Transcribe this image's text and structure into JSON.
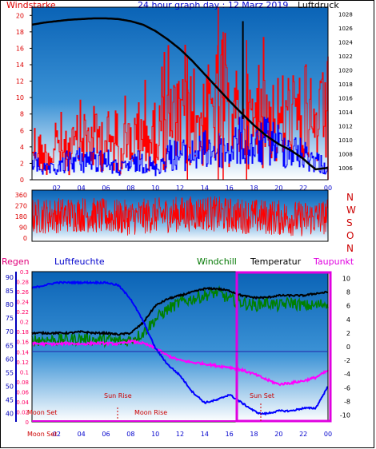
{
  "header": {
    "title": "24 hour graph day : 12 Marz 2019",
    "left_label": "Windstarke",
    "right_label": "Luftdruck"
  },
  "lower_header": {
    "regen": "Regen",
    "luftfeuchte": "Luftfeuchte",
    "windchill": "Windchill",
    "temperatur": "Temperatur",
    "taupunkt": "Taupunkt"
  },
  "colors": {
    "sky_top": "#0a63b6",
    "sky_bottom": "#ffffff",
    "wind_red": "#ff0000",
    "gust_blue": "#0000ff",
    "pressure": "#000000",
    "humidity": "#0000ff",
    "temperature": "#000000",
    "windchill": "#008000",
    "dewpoint": "#ff00ff",
    "rain_axis": "#ff0066",
    "title_blue": "#0000cc",
    "label_red": "#dd0000",
    "axis_blue": "#0000bb"
  },
  "events": {
    "moon_set_bottom": "Moon Set",
    "moon_set_top": "Moon Set",
    "sun_rise": "Sun Rise",
    "moon_rise": "Moon Rise",
    "sun_set": "Sun Set"
  },
  "chart_data": [
    {
      "type": "line",
      "title": "24 hour graph day : 12 Marz 2019",
      "x_ticks": [
        "02",
        "04",
        "06",
        "08",
        "10",
        "12",
        "14",
        "16",
        "18",
        "20",
        "22",
        "00"
      ],
      "y_left_label": "Windstarke",
      "y_left_ticks": [
        "0",
        "2",
        "4",
        "6",
        "8",
        "10",
        "12",
        "14",
        "16",
        "18",
        "20"
      ],
      "y_left_range": [
        0,
        21
      ],
      "y_right_label": "Luftdruck",
      "y_right_ticks": [
        "1006",
        "1008",
        "1010",
        "1012",
        "1014",
        "1016",
        "1018",
        "1020",
        "1022",
        "1024",
        "1026",
        "1028"
      ],
      "y_right_range": [
        1004.3,
        1029
      ],
      "series": [
        {
          "name": "Luftdruck",
          "axis": "right",
          "x_hours": [
            0,
            1,
            2,
            3,
            4,
            5,
            6,
            7,
            8,
            9,
            10,
            11,
            12,
            13,
            14,
            15,
            16,
            17,
            18,
            19,
            20,
            21,
            22,
            22.5,
            23,
            24
          ],
          "values": [
            1026.5,
            1026.8,
            1027.0,
            1027.2,
            1027.3,
            1027.4,
            1027.4,
            1027.3,
            1027.0,
            1026.5,
            1025.6,
            1024.4,
            1023.0,
            1021.3,
            1019.4,
            1017.5,
            1015.6,
            1013.8,
            1012.1,
            1010.6,
            1009.4,
            1008.5,
            1007.3,
            1006.5,
            1005.8,
            1006.0
          ]
        },
        {
          "name": "Windboen",
          "axis": "left",
          "style": "spiky red bars",
          "x_hours": [
            0,
            1,
            2,
            3,
            4,
            5,
            6,
            7,
            8,
            9,
            10,
            11,
            12,
            13,
            14,
            15,
            16,
            17,
            18,
            19,
            20,
            21,
            22,
            23,
            24
          ],
          "values": [
            8,
            5,
            6,
            6,
            9,
            9,
            9,
            6,
            9,
            8,
            9,
            13,
            12,
            14,
            13,
            17,
            13,
            14,
            12,
            14,
            13,
            14,
            12,
            11,
            15
          ]
        },
        {
          "name": "Windstarke",
          "axis": "left",
          "style": "spiky blue bars",
          "x_hours": [
            0,
            1,
            2,
            3,
            4,
            5,
            6,
            7,
            8,
            9,
            10,
            11,
            12,
            13,
            14,
            15,
            16,
            17,
            18,
            19,
            20,
            21,
            22,
            23,
            24
          ],
          "values": [
            4,
            2,
            2,
            4,
            4,
            4,
            4,
            2,
            3,
            4,
            2,
            5,
            5,
            5,
            6,
            6,
            6,
            8,
            6,
            8,
            7,
            6,
            5,
            4,
            2
          ]
        }
      ]
    },
    {
      "type": "line",
      "y_left_ticks": [
        "0",
        "90",
        "180",
        "270",
        "360"
      ],
      "y_left_range": [
        0,
        360
      ],
      "y_right_ticks": [
        "N",
        "W",
        "S",
        "O",
        "N"
      ],
      "series": [
        {
          "name": "Windrichtung",
          "axis": "left",
          "style": "noisy red line",
          "x_hours": [
            0,
            2,
            4,
            6,
            8,
            10,
            12,
            14,
            16,
            18,
            20,
            22,
            24
          ],
          "values": [
            180,
            190,
            200,
            180,
            170,
            190,
            200,
            210,
            190,
            180,
            170,
            160,
            180
          ]
        }
      ]
    },
    {
      "type": "line",
      "x_ticks": [
        "02",
        "04",
        "06",
        "08",
        "10",
        "12",
        "14",
        "16",
        "18",
        "20",
        "22",
        "00"
      ],
      "y_left_humidity_ticks": [
        "40",
        "45",
        "50",
        "55",
        "60",
        "65",
        "70",
        "75",
        "80",
        "85",
        "90"
      ],
      "y_left_rain_ticks": [
        "0",
        "0.02",
        "0.04",
        "0.06",
        "0.08",
        "0.1",
        "0.12",
        "0.14",
        "0.16",
        "0.18",
        "0.2",
        "0.22",
        "0.24",
        "0.26",
        "0.28",
        "0.3"
      ],
      "y_right_temp_ticks": [
        "-10",
        "-8",
        "-6",
        "-4",
        "-2",
        "0",
        "2",
        "4",
        "6",
        "8",
        "10"
      ],
      "y_right_range": [
        -11,
        11
      ],
      "series": [
        {
          "name": "Luftfeuchte",
          "axis": "humidity",
          "x_hours": [
            0,
            1,
            2,
            3,
            4,
            5,
            6,
            7,
            8,
            9,
            10,
            11,
            12,
            13,
            14,
            15,
            16,
            17,
            18,
            18.5,
            19,
            20,
            21,
            22,
            23,
            24
          ],
          "values": [
            86,
            87,
            88,
            88,
            88,
            88,
            88,
            87,
            82,
            74,
            64,
            58,
            54,
            48,
            44,
            45,
            47,
            44,
            41,
            40,
            40,
            41,
            41,
            42,
            42,
            50
          ]
        },
        {
          "name": "Temperatur",
          "axis": "temp",
          "x_hours": [
            0,
            1,
            2,
            3,
            4,
            5,
            6,
            7,
            8,
            9,
            10,
            11,
            12,
            13,
            14,
            15,
            16,
            17,
            18,
            19,
            20,
            21,
            22,
            23,
            24
          ],
          "values": [
            2.0,
            2.0,
            2.0,
            2.0,
            2.2,
            2.0,
            2.0,
            1.8,
            2.0,
            3.5,
            6.0,
            7.0,
            7.5,
            8.0,
            8.5,
            8.5,
            8.2,
            7.5,
            7.2,
            7.2,
            7.5,
            7.5,
            7.5,
            7.8,
            8.0
          ]
        },
        {
          "name": "Windchill",
          "axis": "temp",
          "x_hours": [
            0,
            1,
            2,
            3,
            4,
            5,
            6,
            7,
            8,
            9,
            10,
            11,
            12,
            13,
            14,
            15,
            16,
            17,
            18,
            19,
            20,
            21,
            22,
            23,
            24
          ],
          "values": [
            1.0,
            1.0,
            1.0,
            1.0,
            1.2,
            1.0,
            1.0,
            0.8,
            1.0,
            2.0,
            4.0,
            5.5,
            6.5,
            7.0,
            7.5,
            8.0,
            7.0,
            6.5,
            6.0,
            6.5,
            6.0,
            6.5,
            6.0,
            6.0,
            6.5
          ]
        },
        {
          "name": "Taupunkt",
          "axis": "temp",
          "x_hours": [
            0,
            1,
            2,
            3,
            4,
            5,
            6,
            7,
            8,
            9,
            10,
            11,
            12,
            13,
            14,
            15,
            16,
            17,
            18,
            19,
            20,
            21,
            22,
            23,
            24
          ],
          "values": [
            0.5,
            0.4,
            0.4,
            0.5,
            0.4,
            0.5,
            0.5,
            0.4,
            0.8,
            0.5,
            -0.2,
            -1.3,
            -2.0,
            -2.3,
            -2.5,
            -2.8,
            -3.0,
            -3.4,
            -4.0,
            -4.8,
            -5.5,
            -5.3,
            -5.0,
            -4.5,
            -3.5
          ]
        }
      ]
    }
  ]
}
